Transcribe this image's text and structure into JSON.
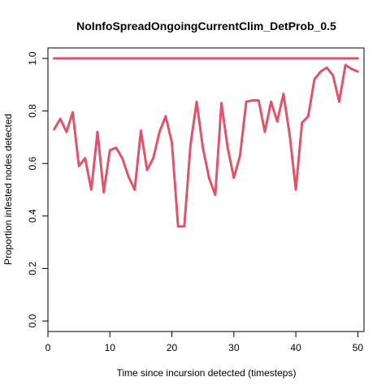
{
  "chart_data": {
    "type": "line",
    "title": "NoInfoSpreadOngoingCurrentClim_DetProb_0.5",
    "xlabel": "Time since incursion detected (timesteps)",
    "ylabel": "Proportion infested nodes detected",
    "xlim": [
      0,
      51
    ],
    "ylim": [
      -0.04,
      1.04
    ],
    "xticks": [
      0,
      10,
      20,
      30,
      40,
      50
    ],
    "yticks": [
      0.0,
      0.2,
      0.4,
      0.6,
      0.8,
      1.0
    ],
    "xtick_labels": [
      "0",
      "10",
      "20",
      "30",
      "40",
      "50"
    ],
    "ytick_labels": [
      "0.0",
      "0.2",
      "0.4",
      "0.6",
      "0.8",
      "1.0"
    ],
    "grid": false,
    "series": [
      {
        "color": "#df536b",
        "x": [
          1,
          2,
          3,
          4,
          5,
          6,
          7,
          8,
          9,
          10,
          11,
          12,
          13,
          14,
          15,
          16,
          17,
          18,
          19,
          20,
          21,
          22,
          23,
          24,
          25,
          26,
          27,
          28,
          29,
          30,
          31,
          32,
          33,
          34,
          35,
          36,
          37,
          38,
          39,
          40,
          41,
          42,
          43,
          44,
          45,
          46,
          47,
          48,
          49,
          50
        ],
        "values": [
          1,
          1,
          1,
          1,
          1,
          1,
          1,
          1,
          1,
          1,
          1,
          1,
          1,
          1,
          1,
          1,
          1,
          1,
          1,
          1,
          1,
          1,
          1,
          1,
          1,
          1,
          1,
          1,
          1,
          1,
          1,
          1,
          1,
          1,
          1,
          1,
          1,
          1,
          1,
          1,
          1,
          1,
          1,
          1,
          1,
          1,
          1,
          1,
          1,
          1
        ]
      },
      {
        "color": "#df536b",
        "x": [
          1,
          2,
          3,
          4,
          5,
          6,
          7,
          8,
          9,
          10,
          11,
          12,
          13,
          14,
          15,
          16,
          17,
          18,
          19,
          20,
          21,
          22,
          23,
          24,
          25,
          26,
          27,
          28,
          29,
          30,
          31,
          32,
          33,
          34,
          35,
          36,
          37,
          38,
          39,
          40,
          41,
          42,
          43,
          44,
          45,
          46,
          47,
          48,
          49,
          50
        ],
        "values": [
          0.73,
          0.77,
          0.72,
          0.795,
          0.59,
          0.62,
          0.5,
          0.72,
          0.49,
          0.65,
          0.66,
          0.62,
          0.55,
          0.5,
          0.725,
          0.575,
          0.62,
          0.72,
          0.78,
          0.68,
          0.36,
          0.36,
          0.67,
          0.835,
          0.66,
          0.545,
          0.48,
          0.83,
          0.66,
          0.545,
          0.63,
          0.835,
          0.84,
          0.84,
          0.72,
          0.835,
          0.76,
          0.865,
          0.71,
          0.5,
          0.755,
          0.78,
          0.92,
          0.95,
          0.965,
          0.935,
          0.835,
          0.975,
          0.96,
          0.95
        ]
      }
    ]
  }
}
